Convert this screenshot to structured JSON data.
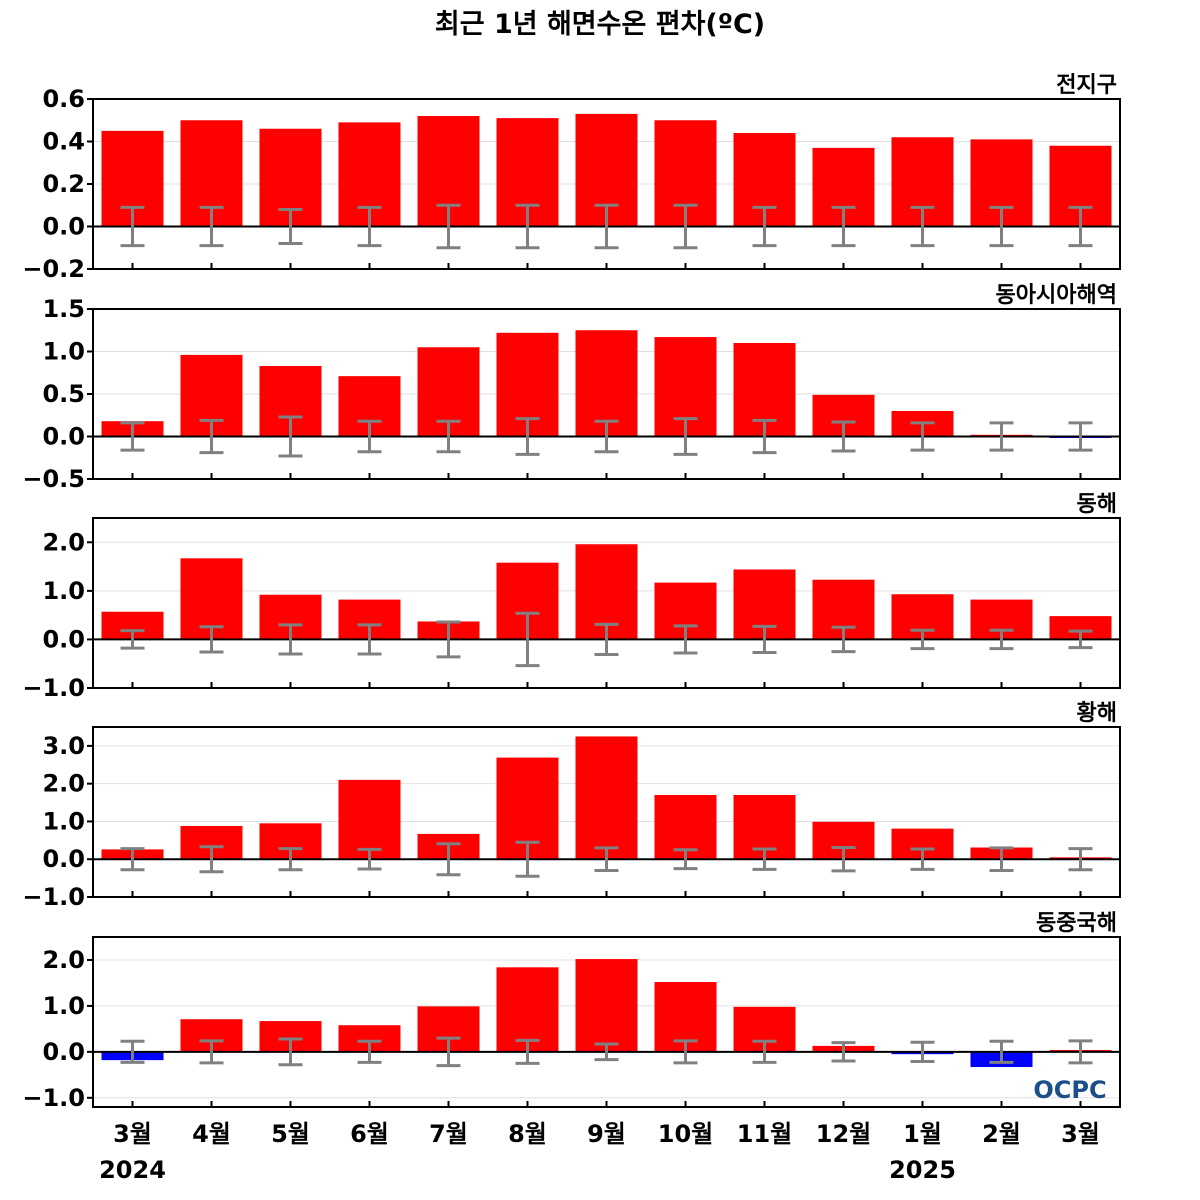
{
  "title": "최근 1년 해면수온 편차(ºC)",
  "logo": "OCPC",
  "colors": {
    "positive": "#ff0000",
    "negative": "#0000ff",
    "error_bar": "#808080",
    "zero_line": "#000000",
    "grid": "#e0e0e0",
    "logo_dark": "#1a4f8a",
    "logo_light": "#58b7e6"
  },
  "chart_data": [
    {
      "type": "bar",
      "title": "전지구",
      "categories": [
        "3월",
        "4월",
        "5월",
        "6월",
        "7월",
        "8월",
        "9월",
        "10월",
        "11월",
        "12월",
        "1월",
        "2월",
        "3월"
      ],
      "values": [
        0.45,
        0.5,
        0.46,
        0.49,
        0.52,
        0.51,
        0.53,
        0.5,
        0.44,
        0.37,
        0.42,
        0.41,
        0.38
      ],
      "error": [
        0.09,
        0.09,
        0.08,
        0.09,
        0.1,
        0.1,
        0.1,
        0.1,
        0.09,
        0.09,
        0.09,
        0.09,
        0.09
      ],
      "ylim": [
        -0.2,
        0.6
      ],
      "yticks": [
        -0.2,
        0.0,
        0.2,
        0.4,
        0.6
      ],
      "ytick_labels": [
        "−0.2",
        "0.0",
        "0.2",
        "0.4",
        "0.6"
      ],
      "grid": true
    },
    {
      "type": "bar",
      "title": "동아시아해역",
      "categories": [
        "3월",
        "4월",
        "5월",
        "6월",
        "7월",
        "8월",
        "9월",
        "10월",
        "11월",
        "12월",
        "1월",
        "2월",
        "3월"
      ],
      "values": [
        0.18,
        0.96,
        0.83,
        0.71,
        1.05,
        1.22,
        1.25,
        1.17,
        1.1,
        0.49,
        0.3,
        0.02,
        -0.01
      ],
      "error": [
        0.16,
        0.19,
        0.23,
        0.18,
        0.18,
        0.21,
        0.18,
        0.21,
        0.19,
        0.17,
        0.16,
        0.16,
        0.16
      ],
      "ylim": [
        -0.5,
        1.5
      ],
      "yticks": [
        -0.5,
        0.0,
        0.5,
        1.0,
        1.5
      ],
      "ytick_labels": [
        "−0.5",
        "0.0",
        "0.5",
        "1.0",
        "1.5"
      ],
      "grid": true
    },
    {
      "type": "bar",
      "title": "동해",
      "categories": [
        "3월",
        "4월",
        "5월",
        "6월",
        "7월",
        "8월",
        "9월",
        "10월",
        "11월",
        "12월",
        "1월",
        "2월",
        "3월"
      ],
      "values": [
        0.57,
        1.67,
        0.92,
        0.82,
        0.37,
        1.58,
        1.96,
        1.17,
        1.44,
        1.23,
        0.93,
        0.82,
        0.48
      ],
      "error": [
        0.18,
        0.26,
        0.3,
        0.3,
        0.36,
        0.54,
        0.31,
        0.28,
        0.27,
        0.25,
        0.19,
        0.19,
        0.17
      ],
      "ylim": [
        -1.0,
        2.5
      ],
      "yticks": [
        -1.0,
        0.0,
        1.0,
        2.0
      ],
      "ytick_labels": [
        "−1.0",
        "0.0",
        "1.0",
        "2.0"
      ],
      "grid": true
    },
    {
      "type": "bar",
      "title": "황해",
      "categories": [
        "3월",
        "4월",
        "5월",
        "6월",
        "7월",
        "8월",
        "9월",
        "10월",
        "11월",
        "12월",
        "1월",
        "2월",
        "3월"
      ],
      "values": [
        0.26,
        0.88,
        0.95,
        2.1,
        0.67,
        2.69,
        3.25,
        1.7,
        1.7,
        0.99,
        0.81,
        0.31,
        0.05
      ],
      "error": [
        0.28,
        0.33,
        0.28,
        0.26,
        0.41,
        0.45,
        0.3,
        0.25,
        0.27,
        0.31,
        0.27,
        0.3,
        0.28
      ],
      "ylim": [
        -1.0,
        3.5
      ],
      "yticks": [
        -1.0,
        0.0,
        1.0,
        2.0,
        3.0
      ],
      "ytick_labels": [
        "−1.0",
        "0.0",
        "1.0",
        "2.0",
        "3.0"
      ],
      "grid": true
    },
    {
      "type": "bar",
      "title": "동중국해",
      "categories": [
        "3월",
        "4월",
        "5월",
        "6월",
        "7월",
        "8월",
        "9월",
        "10월",
        "11월",
        "12월",
        "1월",
        "2월",
        "3월"
      ],
      "values": [
        -0.18,
        0.71,
        0.67,
        0.58,
        0.99,
        1.84,
        2.02,
        1.52,
        0.98,
        0.13,
        -0.05,
        -0.33,
        0.04
      ],
      "error": [
        0.23,
        0.24,
        0.28,
        0.23,
        0.3,
        0.25,
        0.17,
        0.24,
        0.23,
        0.2,
        0.21,
        0.23,
        0.24
      ],
      "ylim": [
        -1.2,
        2.5
      ],
      "yticks": [
        -1.0,
        0.0,
        1.0,
        2.0
      ],
      "ytick_labels": [
        "−1.0",
        "0.0",
        "1.0",
        "2.0"
      ],
      "grid": true
    }
  ],
  "x_axis": {
    "month_labels": [
      "3월",
      "4월",
      "5월",
      "6월",
      "7월",
      "8월",
      "9월",
      "10월",
      "11월",
      "12월",
      "1월",
      "2월",
      "3월"
    ],
    "year_labels": [
      {
        "text": "2024",
        "index": 0
      },
      {
        "text": "2025",
        "index": 10
      }
    ]
  }
}
